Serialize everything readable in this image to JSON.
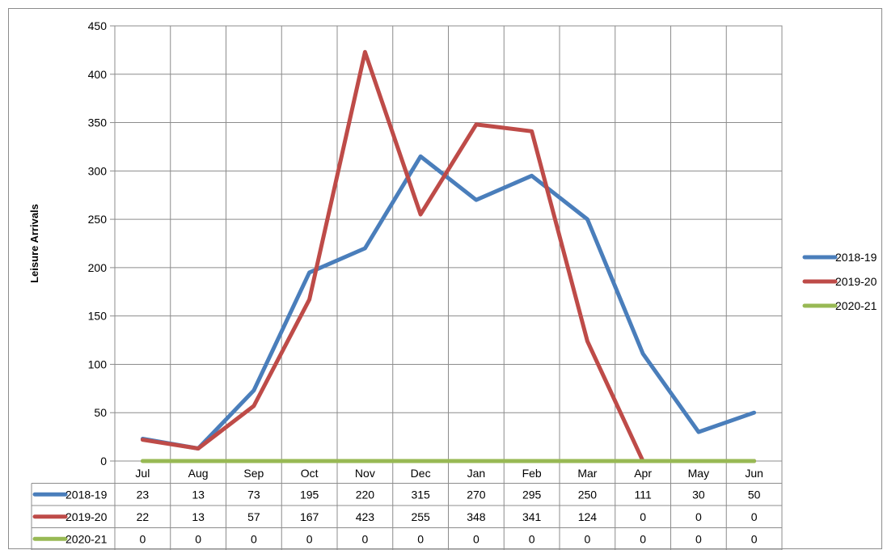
{
  "chart_data": {
    "type": "line",
    "title": "",
    "xlabel": "",
    "ylabel": "Leisure Arrivals",
    "ylim": [
      0,
      450
    ],
    "yticks": [
      0,
      50,
      100,
      150,
      200,
      250,
      300,
      350,
      400,
      450
    ],
    "categories": [
      "Jul",
      "Aug",
      "Sep",
      "Oct",
      "Nov",
      "Dec",
      "Jan",
      "Feb",
      "Mar",
      "Apr",
      "May",
      "Jun"
    ],
    "series": [
      {
        "name": "2018-19",
        "color": "#4a7ebb",
        "values": [
          23,
          13,
          73,
          195,
          220,
          315,
          270,
          295,
          250,
          111,
          30,
          50
        ]
      },
      {
        "name": "2019-20",
        "color": "#be4b48",
        "values": [
          22,
          13,
          57,
          167,
          423,
          255,
          348,
          341,
          124,
          0,
          0,
          0
        ]
      },
      {
        "name": "2020-21",
        "color": "#98b954",
        "values": [
          0,
          0,
          0,
          0,
          0,
          0,
          0,
          0,
          0,
          0,
          0,
          0
        ]
      }
    ],
    "grid": true,
    "legend": "right",
    "data_table": true
  }
}
